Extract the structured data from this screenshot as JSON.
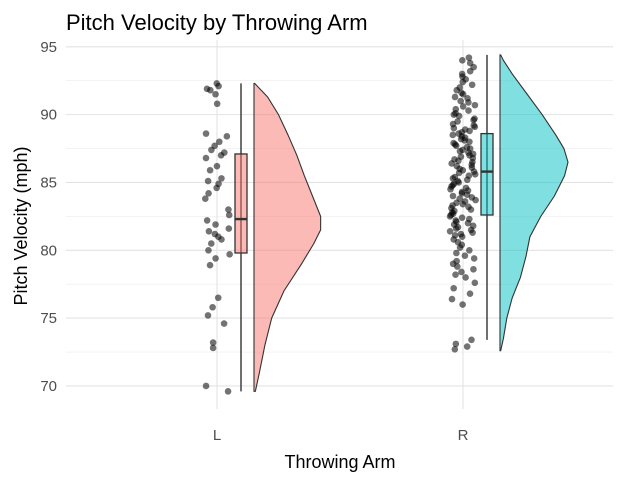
{
  "chart_data": {
    "type": "raincloud",
    "title": "Pitch Velocity by Throwing Arm",
    "xlabel": "Throwing Arm",
    "ylabel": "Pitch Velocity (mph)",
    "ylim": [
      68.3,
      95.5
    ],
    "yticks": [
      70,
      75,
      80,
      85,
      90,
      95
    ],
    "categories": [
      "L",
      "R"
    ],
    "grid": true,
    "legend": "none",
    "groups": [
      {
        "label": "L",
        "fill": "#F8766D",
        "box": {
          "min": 69.6,
          "q1": 79.8,
          "median": 82.3,
          "q3": 87.1,
          "max": 92.3
        },
        "density": [
          [
            69.6,
            0.02
          ],
          [
            71.0,
            0.08
          ],
          [
            73.0,
            0.16
          ],
          [
            75.0,
            0.26
          ],
          [
            77.0,
            0.44
          ],
          [
            79.0,
            0.7
          ],
          [
            80.5,
            0.88
          ],
          [
            81.5,
            0.98
          ],
          [
            82.5,
            0.98
          ],
          [
            84.0,
            0.86
          ],
          [
            85.5,
            0.74
          ],
          [
            87.0,
            0.63
          ],
          [
            88.5,
            0.5
          ],
          [
            90.0,
            0.36
          ],
          [
            91.3,
            0.2
          ],
          [
            92.3,
            0.01
          ]
        ],
        "points": [
          92.3,
          92.1,
          91.9,
          91.8,
          91.5,
          90.8,
          88.6,
          88.4,
          88.0,
          87.7,
          87.4,
          87.2,
          87.0,
          86.8,
          86.2,
          85.9,
          85.3,
          85.1,
          84.9,
          84.6,
          84.2,
          83.8,
          83.0,
          82.6,
          82.2,
          81.9,
          81.6,
          81.4,
          81.2,
          81.0,
          80.8,
          80.5,
          80.0,
          79.7,
          79.4,
          78.9,
          76.5,
          75.8,
          75.2,
          74.6,
          73.2,
          72.8,
          70.0,
          69.6
        ]
      },
      {
        "label": "R",
        "fill": "#00BFC4",
        "box": {
          "min": 73.4,
          "q1": 82.6,
          "median": 85.8,
          "q3": 88.6,
          "max": 94.4
        },
        "density": [
          [
            72.6,
            0.01
          ],
          [
            73.5,
            0.05
          ],
          [
            75.0,
            0.1
          ],
          [
            76.5,
            0.18
          ],
          [
            78.0,
            0.3
          ],
          [
            79.5,
            0.38
          ],
          [
            81.0,
            0.44
          ],
          [
            82.5,
            0.6
          ],
          [
            84.0,
            0.8
          ],
          [
            85.5,
            0.95
          ],
          [
            86.5,
            1.0
          ],
          [
            87.5,
            0.94
          ],
          [
            88.5,
            0.82
          ],
          [
            90.0,
            0.62
          ],
          [
            91.5,
            0.4
          ],
          [
            93.0,
            0.18
          ],
          [
            94.0,
            0.05
          ],
          [
            94.4,
            0.01
          ]
        ],
        "points": [
          94.2,
          94.0,
          93.8,
          93.5,
          93.2,
          93.0,
          92.8,
          92.6,
          92.4,
          92.2,
          92.0,
          91.8,
          91.6,
          91.5,
          91.3,
          91.2,
          91.0,
          90.9,
          90.7,
          90.6,
          90.4,
          90.3,
          90.1,
          90.0,
          89.9,
          89.7,
          89.6,
          89.5,
          89.3,
          89.2,
          89.1,
          89.0,
          88.9,
          88.8,
          88.7,
          88.6,
          88.5,
          88.4,
          88.3,
          88.2,
          88.1,
          88.0,
          87.9,
          87.8,
          87.7,
          87.6,
          87.5,
          87.4,
          87.3,
          87.2,
          87.1,
          87.0,
          86.9,
          86.8,
          86.7,
          86.6,
          86.5,
          86.4,
          86.3,
          86.2,
          86.1,
          86.0,
          85.9,
          85.8,
          85.7,
          85.6,
          85.5,
          85.4,
          85.3,
          85.2,
          85.1,
          85.0,
          84.9,
          84.8,
          84.7,
          84.6,
          84.5,
          84.4,
          84.3,
          84.2,
          84.1,
          84.0,
          83.9,
          83.8,
          83.7,
          83.6,
          83.5,
          83.4,
          83.3,
          83.2,
          83.1,
          83.0,
          82.9,
          82.8,
          82.7,
          82.6,
          82.5,
          82.4,
          82.3,
          82.2,
          82.1,
          82.0,
          81.9,
          81.8,
          81.7,
          81.6,
          81.5,
          81.4,
          81.3,
          81.2,
          81.1,
          81.0,
          80.8,
          80.6,
          80.4,
          80.2,
          80.0,
          79.8,
          79.6,
          79.4,
          79.2,
          79.0,
          78.8,
          78.6,
          78.4,
          78.2,
          78.0,
          77.6,
          77.2,
          76.8,
          76.4,
          76.0,
          73.4,
          73.1,
          72.9,
          72.7
        ]
      }
    ]
  }
}
